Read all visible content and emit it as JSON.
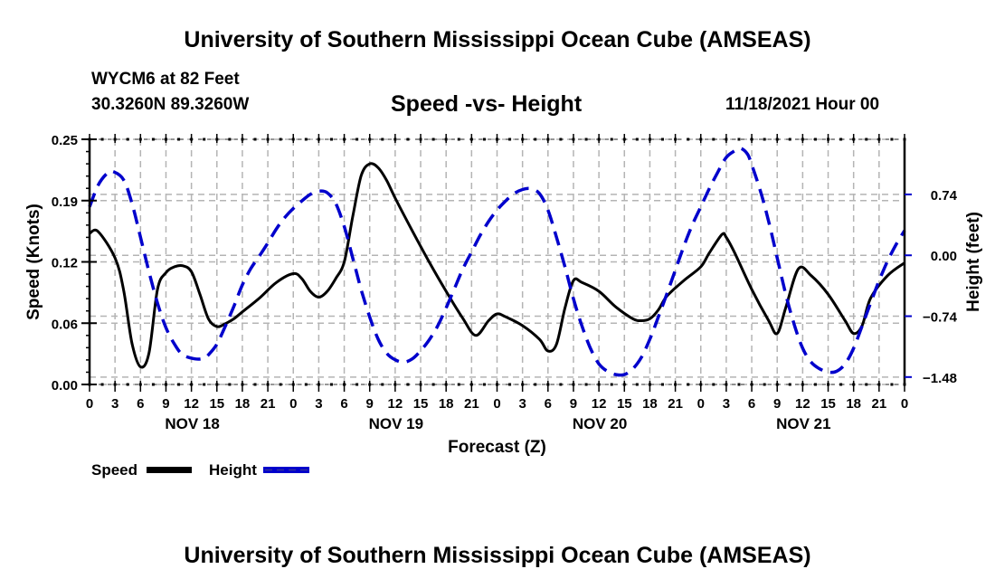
{
  "header": {
    "title": "University of Southern Mississippi Ocean Cube (AMSEAS)",
    "station": "WYCM6 at 82 Feet",
    "coords": "30.3260N  89.3260W",
    "subtitle": "Speed -vs- Height",
    "datestamp": "11/18/2021 Hour 00"
  },
  "footer": {
    "title": "University of Southern Mississippi Ocean Cube (AMSEAS)"
  },
  "colors": {
    "speed": "#000000",
    "height": "#0000cc",
    "grid": "#b4b4b4"
  },
  "chart_data": {
    "type": "line",
    "title": "Speed -vs- Height",
    "xlabel": "Forecast (Z)",
    "ylabel": "Speed (Knots)",
    "y2label": "Height (feet)",
    "xlim": [
      0,
      96
    ],
    "ylim": [
      0,
      0.25
    ],
    "y2lim": [
      -1.57,
      1.41
    ],
    "grid": true,
    "legend_position": "bottom-left",
    "x_tick_labels": [
      "0",
      "3",
      "6",
      "9",
      "12",
      "15",
      "18",
      "21",
      "0",
      "3",
      "6",
      "9",
      "12",
      "15",
      "18",
      "21",
      "0",
      "3",
      "6",
      "9",
      "12",
      "15",
      "18",
      "21",
      "0",
      "3",
      "6",
      "9",
      "12",
      "15",
      "18",
      "21",
      "0"
    ],
    "x_tick_hours": [
      0,
      3,
      6,
      9,
      12,
      15,
      18,
      21,
      24,
      27,
      30,
      33,
      36,
      39,
      42,
      45,
      48,
      51,
      54,
      57,
      60,
      63,
      66,
      69,
      72,
      75,
      78,
      81,
      84,
      87,
      90,
      93,
      96
    ],
    "day_labels": [
      {
        "label": "NOV 18",
        "hour": 12
      },
      {
        "label": "NOV 19",
        "hour": 36
      },
      {
        "label": "NOV 20",
        "hour": 60
      },
      {
        "label": "NOV 21",
        "hour": 84
      }
    ],
    "y_ticks": [
      {
        "value": 0.0,
        "label": "0.00"
      },
      {
        "value": 0.0625,
        "label": "0.06"
      },
      {
        "value": 0.125,
        "label": "0.12"
      },
      {
        "value": 0.1875,
        "label": "0.19"
      },
      {
        "value": 0.25,
        "label": "0.25"
      }
    ],
    "y2_ticks": [
      {
        "value": 0.74,
        "label": "0.74"
      },
      {
        "value": 0.0,
        "label": "0.00"
      },
      {
        "value": -0.74,
        "label": "−0.74"
      },
      {
        "value": -1.48,
        "label": "−1.48"
      }
    ],
    "series": [
      {
        "name": "Speed",
        "axis": "left",
        "style": "solid",
        "x": [
          0,
          1,
          3,
          4,
          5,
          6,
          7,
          8,
          9,
          10,
          11,
          12,
          13,
          14,
          15,
          16,
          17,
          18,
          20,
          22,
          24,
          25,
          26,
          27,
          28,
          29,
          30,
          31,
          32,
          33,
          34,
          35,
          36,
          38,
          40,
          42,
          44,
          45.5,
          47,
          48,
          49,
          51,
          53,
          54,
          55,
          56,
          57,
          58,
          60,
          62,
          64,
          65,
          66,
          67,
          68,
          70,
          72,
          73,
          74.5,
          75,
          76,
          78,
          80,
          81,
          82,
          83.5,
          85,
          87,
          89,
          90,
          91,
          92,
          94,
          96
        ],
        "values": [
          0.154,
          0.156,
          0.129,
          0.097,
          0.042,
          0.018,
          0.032,
          0.097,
          0.114,
          0.12,
          0.121,
          0.115,
          0.092,
          0.067,
          0.059,
          0.062,
          0.067,
          0.074,
          0.088,
          0.104,
          0.113,
          0.108,
          0.095,
          0.089,
          0.095,
          0.108,
          0.125,
          0.171,
          0.213,
          0.225,
          0.221,
          0.208,
          0.19,
          0.157,
          0.125,
          0.095,
          0.067,
          0.05,
          0.065,
          0.072,
          0.069,
          0.06,
          0.046,
          0.034,
          0.041,
          0.078,
          0.106,
          0.104,
          0.095,
          0.079,
          0.067,
          0.065,
          0.067,
          0.076,
          0.09,
          0.106,
          0.12,
          0.134,
          0.153,
          0.15,
          0.134,
          0.097,
          0.065,
          0.052,
          0.078,
          0.118,
          0.111,
          0.092,
          0.065,
          0.052,
          0.06,
          0.088,
          0.111,
          0.124
        ]
      },
      {
        "name": "Height",
        "axis": "right",
        "style": "dashed",
        "x": [
          0,
          1,
          2,
          2.7,
          4,
          5,
          6,
          7,
          8,
          9,
          10,
          11,
          12.5,
          13.5,
          14,
          15,
          16,
          17,
          18,
          19,
          20,
          21,
          22,
          23,
          24,
          25,
          26,
          27,
          28,
          29,
          30,
          31,
          32,
          33,
          34,
          35,
          36,
          37,
          38,
          39,
          40,
          41,
          42,
          43,
          44,
          45,
          46,
          47,
          48,
          49,
          50,
          51,
          52,
          53,
          54,
          55,
          56,
          57,
          58,
          59,
          60,
          61,
          62,
          63,
          64,
          65,
          66,
          67,
          68,
          69,
          70,
          71,
          72,
          73,
          74,
          75,
          76,
          76.7,
          77.5,
          78,
          79,
          80,
          81,
          82,
          83,
          84,
          85,
          86,
          87,
          88,
          89,
          90,
          91,
          92,
          93,
          94,
          95,
          96
        ],
        "values": [
          0.59,
          0.85,
          0.99,
          1.02,
          0.92,
          0.63,
          0.22,
          -0.2,
          -0.58,
          -0.88,
          -1.08,
          -1.21,
          -1.26,
          -1.25,
          -1.21,
          -1.08,
          -0.86,
          -0.62,
          -0.36,
          -0.16,
          -0.01,
          0.15,
          0.32,
          0.46,
          0.57,
          0.66,
          0.74,
          0.78,
          0.76,
          0.63,
          0.35,
          -0.03,
          -0.42,
          -0.75,
          -1.02,
          -1.19,
          -1.27,
          -1.3,
          -1.26,
          -1.16,
          -1.03,
          -0.86,
          -0.64,
          -0.4,
          -0.16,
          0.04,
          0.24,
          0.41,
          0.55,
          0.66,
          0.75,
          0.8,
          0.81,
          0.75,
          0.55,
          0.22,
          -0.14,
          -0.53,
          -0.86,
          -1.13,
          -1.32,
          -1.41,
          -1.45,
          -1.45,
          -1.38,
          -1.24,
          -1.02,
          -0.75,
          -0.47,
          -0.18,
          0.11,
          0.37,
          0.59,
          0.81,
          1.01,
          1.19,
          1.27,
          1.3,
          1.23,
          1.1,
          0.79,
          0.41,
          -0.03,
          -0.47,
          -0.84,
          -1.13,
          -1.3,
          -1.38,
          -1.42,
          -1.41,
          -1.32,
          -1.13,
          -0.86,
          -0.58,
          -0.31,
          -0.07,
          0.13,
          0.3
        ]
      }
    ]
  }
}
